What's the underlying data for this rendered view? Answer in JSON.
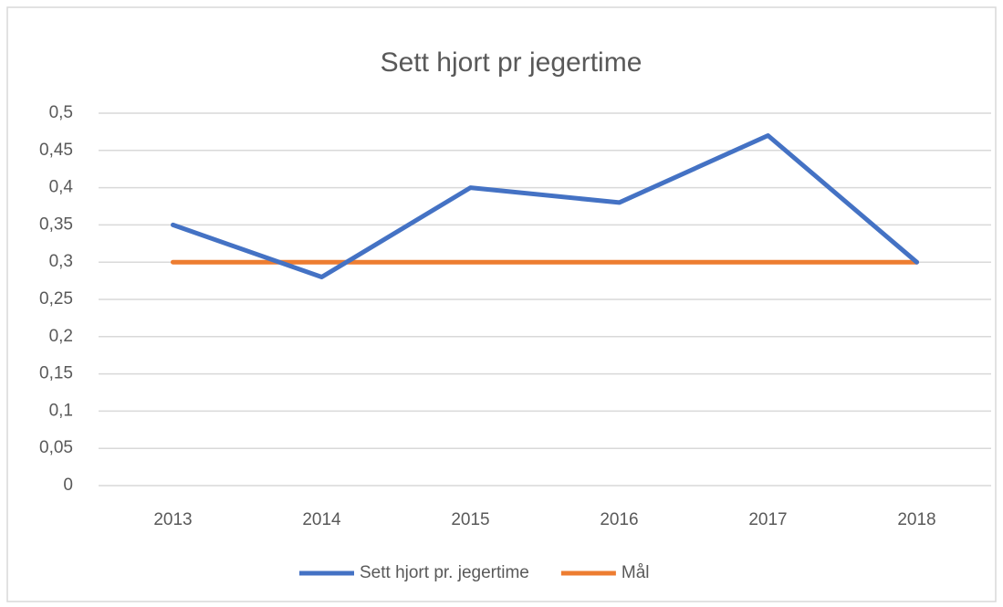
{
  "chart_data": {
    "type": "line",
    "title": "Sett hjort pr jegertime",
    "categories": [
      "2013",
      "2014",
      "2015",
      "2016",
      "2017",
      "2018"
    ],
    "series": [
      {
        "name": "Sett hjort pr. jegertime",
        "color": "#4472c4",
        "values": [
          0.35,
          0.28,
          0.4,
          0.38,
          0.47,
          0.3
        ]
      },
      {
        "name": "Mål",
        "color": "#ed7d31",
        "values": [
          0.3,
          0.3,
          0.3,
          0.3,
          0.3,
          0.3
        ]
      }
    ],
    "ylim": [
      0,
      0.5
    ],
    "yticks": [
      0,
      {
        "value": 0.05,
        "label": "0,05"
      },
      {
        "value": 0.1,
        "label": "0,1"
      },
      {
        "value": 0.15,
        "label": "0,15"
      },
      {
        "value": 0.2,
        "label": "0,2"
      },
      {
        "value": 0.25,
        "label": "0,25"
      },
      {
        "value": 0.3,
        "label": "0,3"
      },
      {
        "value": 0.35,
        "label": "0,35"
      },
      {
        "value": 0.4,
        "label": "0,4"
      },
      {
        "value": 0.45,
        "label": "0,45"
      },
      {
        "value": 0.5,
        "label": "0,5"
      }
    ],
    "grid": true,
    "legend": "bottom"
  }
}
